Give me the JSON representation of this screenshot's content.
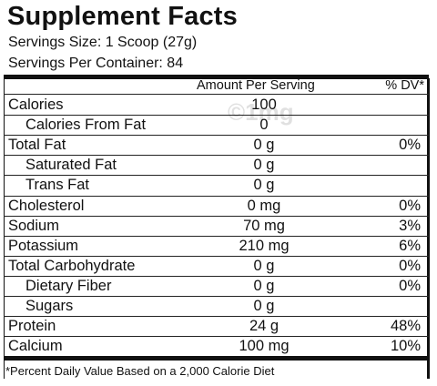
{
  "header": {
    "title": "Supplement Facts",
    "serving_size": "Servings Size: 1 Scoop (27g)",
    "servings_per_container": "Servings Per Container: 84"
  },
  "watermark": "©1mg",
  "table": {
    "columns": [
      "Amount Per Serving",
      "% DV*"
    ],
    "rows": [
      {
        "name": "Calories",
        "amount": "100"
      },
      {
        "name": "Calories From Fat",
        "amount": "0",
        "indent": true
      },
      {
        "name": "Total Fat",
        "amount": "0 g",
        "dv": "0%"
      },
      {
        "name": "Saturated Fat",
        "amount": "0 g",
        "indent": true
      },
      {
        "name": "Trans Fat",
        "amount": "0 g",
        "indent": true
      },
      {
        "name": "Cholesterol",
        "amount": "0 mg",
        "dv": "0%"
      },
      {
        "name": "Sodium",
        "amount": "70 mg",
        "dv": "3%"
      },
      {
        "name": "Potassium",
        "amount": "210 mg",
        "dv": "6%"
      },
      {
        "name": "Total Carbohydrate",
        "amount": "0 g",
        "dv": "0%"
      },
      {
        "name": "Dietary Fiber",
        "amount": "0 g",
        "dv": "0%",
        "indent": true
      },
      {
        "name": "Sugars",
        "amount": "0 g",
        "indent": true
      },
      {
        "name": "Protein",
        "amount": "24 g",
        "dv": "48%"
      },
      {
        "name": "Calcium",
        "amount": "100 mg",
        "dv": "10%"
      }
    ]
  },
  "footnote": "*Percent Daily Value Based on a 2,000 Calorie Diet"
}
